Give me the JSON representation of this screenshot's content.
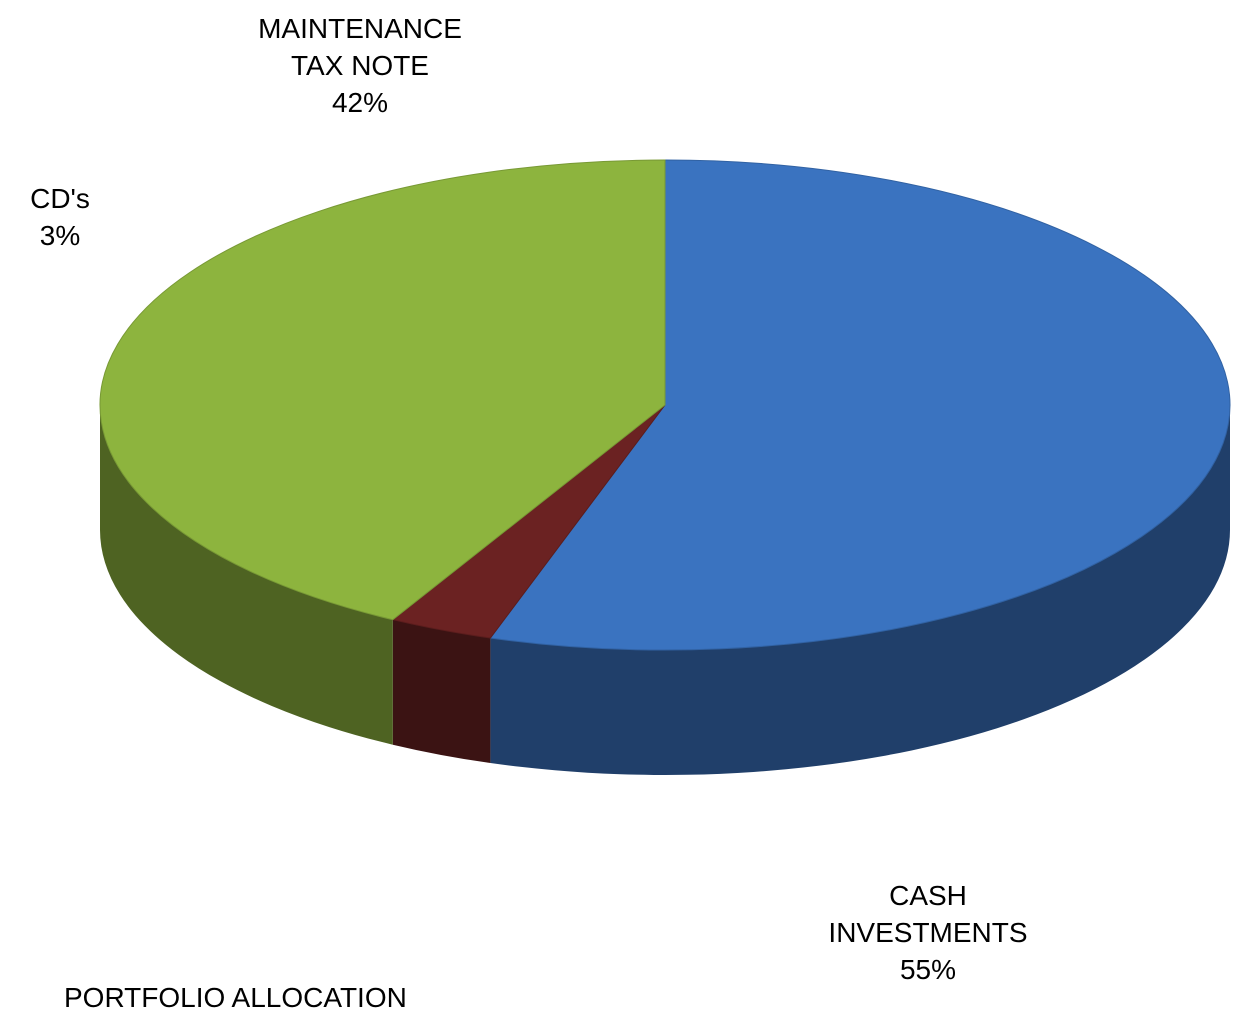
{
  "chart_data": {
    "type": "pie3d",
    "title": "PORTFOLIO ALLOCATION",
    "categories": [
      "CASH INVESTMENTS",
      "CD's",
      "MAINTENANCE TAX NOTE"
    ],
    "values": [
      55,
      3,
      42
    ],
    "value_labels": [
      "55%",
      "3%",
      "42%"
    ],
    "colors": [
      "#3a73c0",
      "#6b2222",
      "#8db43e"
    ]
  }
}
